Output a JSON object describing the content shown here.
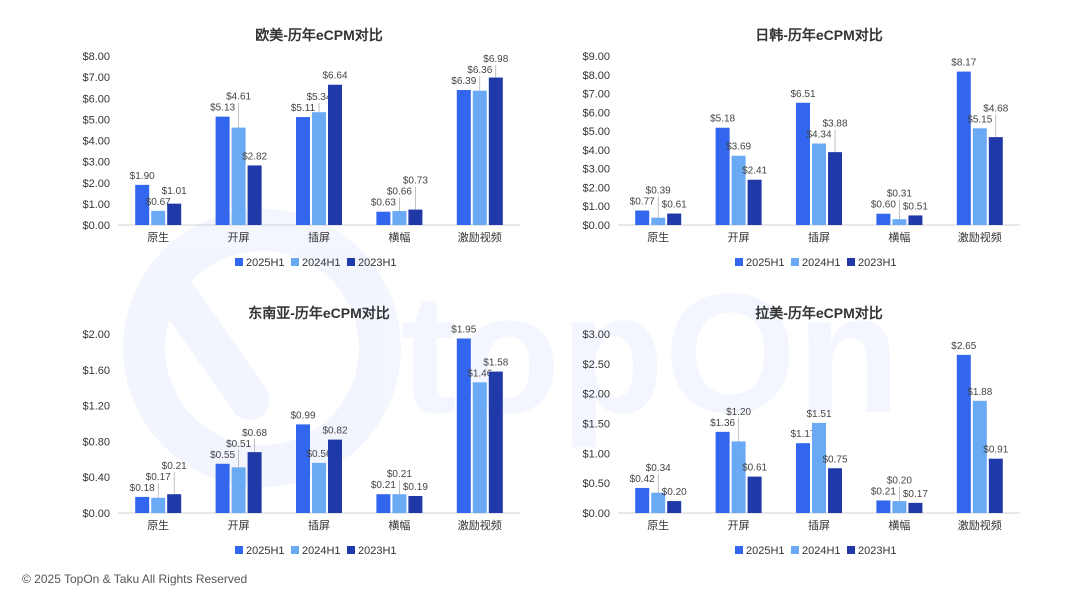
{
  "footer": {
    "copyright": "© 2025 TopOn & Taku All Rights Reserved"
  },
  "watermark": {
    "text": "topOn"
  },
  "colors": {
    "s2025": "#3366ee",
    "s2024": "#6aaaf5",
    "s2023": "#1f3aa8",
    "axis": "#d0d0d0",
    "text": "#333333",
    "label": "#444444"
  },
  "chart_data": [
    {
      "type": "bar",
      "title": "欧美-历年eCPM对比",
      "categories": [
        "原生",
        "开屏",
        "插屏",
        "横幅",
        "激励视频"
      ],
      "yticks": [
        "$0.00",
        "$1.00",
        "$2.00",
        "$3.00",
        "$4.00",
        "$5.00",
        "$6.00",
        "$7.00",
        "$8.00"
      ],
      "ylim": [
        0,
        8
      ],
      "series": [
        {
          "name": "2025H1",
          "values": [
            1.9,
            5.13,
            5.11,
            0.63,
            6.39
          ],
          "labels": [
            "$1.90",
            "$5.13",
            "$5.11",
            "$0.63",
            "$6.39"
          ]
        },
        {
          "name": "2024H1",
          "values": [
            0.67,
            4.61,
            5.34,
            0.66,
            6.36
          ],
          "labels": [
            "$0.67",
            "$4.61",
            "$5.34",
            "$0.66",
            "$6.36"
          ]
        },
        {
          "name": "2023H1",
          "values": [
            1.01,
            2.82,
            6.64,
            0.73,
            6.98
          ],
          "labels": [
            "$1.01",
            "$2.82",
            "$6.64",
            "$0.73",
            "$6.98"
          ]
        }
      ],
      "legend": "bottom"
    },
    {
      "type": "bar",
      "title": "日韩-历年eCPM对比",
      "categories": [
        "原生",
        "开屏",
        "插屏",
        "横幅",
        "激励视频"
      ],
      "yticks": [
        "$0.00",
        "$1.00",
        "$2.00",
        "$3.00",
        "$4.00",
        "$5.00",
        "$6.00",
        "$7.00",
        "$8.00",
        "$9.00"
      ],
      "ylim": [
        0,
        9
      ],
      "series": [
        {
          "name": "2025H1",
          "values": [
            0.77,
            5.18,
            6.51,
            0.6,
            8.17
          ],
          "labels": [
            "$0.77",
            "$5.18",
            "$6.51",
            "$0.60",
            "$8.17"
          ]
        },
        {
          "name": "2024H1",
          "values": [
            0.39,
            3.69,
            4.34,
            0.31,
            5.15
          ],
          "labels": [
            "$0.39",
            "$3.69",
            "$4.34",
            "$0.31",
            "$5.15"
          ]
        },
        {
          "name": "2023H1",
          "values": [
            0.61,
            2.41,
            3.88,
            0.51,
            4.68
          ],
          "labels": [
            "$0.61",
            "$2.41",
            "$3.88",
            "$0.51",
            "$4.68"
          ]
        }
      ],
      "legend": "bottom"
    },
    {
      "type": "bar",
      "title": "东南亚-历年eCPM对比",
      "categories": [
        "原生",
        "开屏",
        "插屏",
        "横幅",
        "激励视频"
      ],
      "yticks": [
        "$0.00",
        "$0.40",
        "$0.80",
        "$1.20",
        "$1.60",
        "$2.00"
      ],
      "ylim": [
        0,
        2
      ],
      "series": [
        {
          "name": "2025H1",
          "values": [
            0.18,
            0.55,
            0.99,
            0.21,
            1.95
          ],
          "labels": [
            "$0.18",
            "$0.55",
            "$0.99",
            "$0.21",
            "$1.95"
          ]
        },
        {
          "name": "2024H1",
          "values": [
            0.17,
            0.51,
            0.56,
            0.21,
            1.46
          ],
          "labels": [
            "$0.17",
            "$0.51",
            "$0.56",
            "$0.21",
            "$1.46"
          ]
        },
        {
          "name": "2023H1",
          "values": [
            0.21,
            0.68,
            0.82,
            0.19,
            1.58
          ],
          "labels": [
            "$0.21",
            "$0.68",
            "$0.82",
            "$0.19",
            "$1.58"
          ]
        }
      ],
      "legend": "bottom"
    },
    {
      "type": "bar",
      "title": "拉美-历年eCPM对比",
      "categories": [
        "原生",
        "开屏",
        "插屏",
        "横幅",
        "激励视频"
      ],
      "yticks": [
        "$0.00",
        "$0.50",
        "$1.00",
        "$1.50",
        "$2.00",
        "$2.50",
        "$3.00"
      ],
      "ylim": [
        0,
        3
      ],
      "series": [
        {
          "name": "2025H1",
          "values": [
            0.42,
            1.36,
            1.17,
            0.21,
            2.65
          ],
          "labels": [
            "$0.42",
            "$1.36",
            "$1.17",
            "$0.21",
            "$2.65"
          ]
        },
        {
          "name": "2024H1",
          "values": [
            0.34,
            1.2,
            1.51,
            0.2,
            1.88
          ],
          "labels": [
            "$0.34",
            "$1.20",
            "$1.51",
            "$0.20",
            "$1.88"
          ]
        },
        {
          "name": "2023H1",
          "values": [
            0.2,
            0.61,
            0.75,
            0.17,
            0.91
          ],
          "labels": [
            "$0.20",
            "$0.61",
            "$0.75",
            "$0.17",
            "$0.91"
          ]
        }
      ],
      "legend": "bottom"
    }
  ]
}
